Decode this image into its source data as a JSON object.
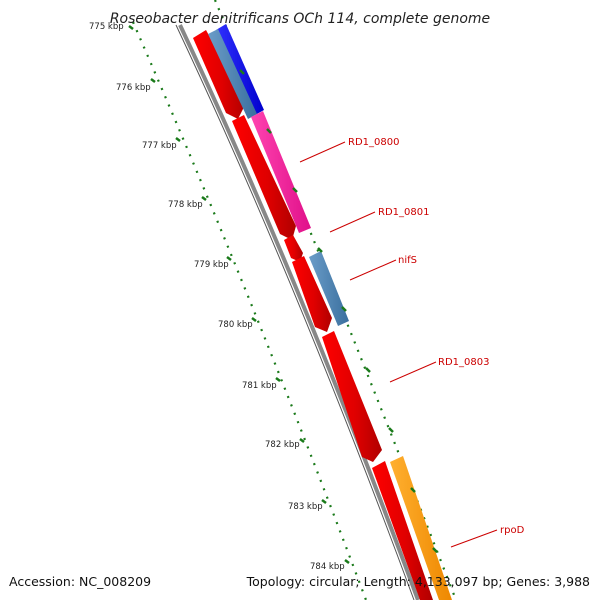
{
  "header": {
    "title": "Roseobacter denitrificans OCh 114, complete genome"
  },
  "footer": {
    "accession": "Accession: NC_008209",
    "summary": "Topology: circular; Length: 4,133,097 bp; Genes: 3,988"
  },
  "scale": {
    "labels": [
      "775 kbp",
      "776 kbp",
      "777 kbp",
      "778 kbp",
      "779 kbp",
      "780 kbp",
      "781 kbp",
      "782 kbp",
      "783 kbp",
      "784 kbp"
    ]
  },
  "gene_labels": [
    {
      "name": "RD1_0800",
      "color": "#cc0000"
    },
    {
      "name": "RD1_0801",
      "color": "#cc0000"
    },
    {
      "name": "nifS",
      "color": "#cc0000"
    },
    {
      "name": "RD1_0803",
      "color": "#cc0000"
    },
    {
      "name": "rpoD",
      "color": "#cc0000"
    }
  ],
  "colors": {
    "cds": "#ff0000",
    "backbone": "#888888",
    "tick": "#1a7a1a",
    "blue": "#0000ff",
    "steel": "#4682b4",
    "pink": "#ff1493",
    "orange": "#ff9900"
  }
}
